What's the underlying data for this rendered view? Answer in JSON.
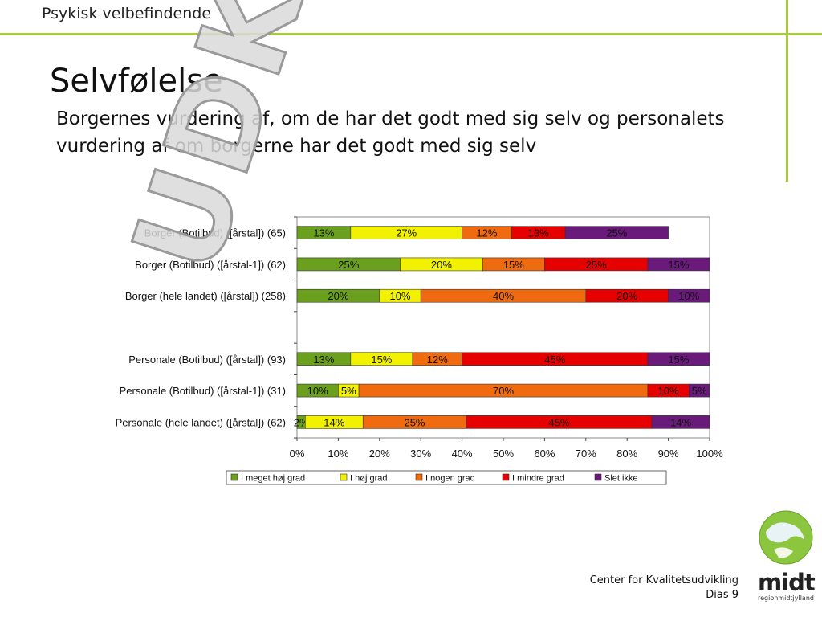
{
  "header": {
    "section_title": "Psykisk velbefindende"
  },
  "slide": {
    "title": "Selvfølelse",
    "subtitle": "Borgernes vurdering af, om de har det godt med sig selv og personalets vurdering af om borgerne har det godt med sig selv"
  },
  "footer": {
    "org": "Center for Kvalitetsudvikling",
    "page": "Dias 9"
  },
  "logo": {
    "text": "midt",
    "sub": "regionmidtjylland"
  },
  "watermark": "UDKAST",
  "chart_data": {
    "type": "bar",
    "orientation": "horizontal",
    "stacked": "percent",
    "categories": [
      "Borger (Botilbud) ([årstal]) (65)",
      "Borger (Botilbud) ([årstal-1]) (62)",
      "Borger (hele landet) ([årstal]) (258)",
      "",
      "Personale (Botilbud) ([årstal]) (93)",
      "Personale (Botilbud) ([årstal-1]) (31)",
      "Personale (hele landet) ([årstal]) (62)"
    ],
    "series": [
      {
        "name": "I meget høj grad",
        "color": "#6aa01e",
        "values": [
          13,
          25,
          20,
          null,
          13,
          10,
          2
        ]
      },
      {
        "name": "I høj grad",
        "color": "#f2f200",
        "values": [
          27,
          20,
          10,
          null,
          15,
          5,
          14
        ]
      },
      {
        "name": "I nogen grad",
        "color": "#f06a10",
        "values": [
          12,
          15,
          40,
          null,
          12,
          70,
          25
        ]
      },
      {
        "name": "I mindre grad",
        "color": "#e60000",
        "values": [
          13,
          25,
          20,
          null,
          45,
          10,
          45
        ]
      },
      {
        "name": "Slet ikke",
        "color": "#6a1a7a",
        "values": [
          25,
          15,
          10,
          null,
          15,
          5,
          14
        ]
      }
    ],
    "x_ticks": [
      "0%",
      "10%",
      "20%",
      "30%",
      "40%",
      "50%",
      "60%",
      "70%",
      "80%",
      "90%",
      "100%"
    ],
    "xlim": [
      0,
      100
    ],
    "legend_position": "bottom",
    "grid": false
  }
}
